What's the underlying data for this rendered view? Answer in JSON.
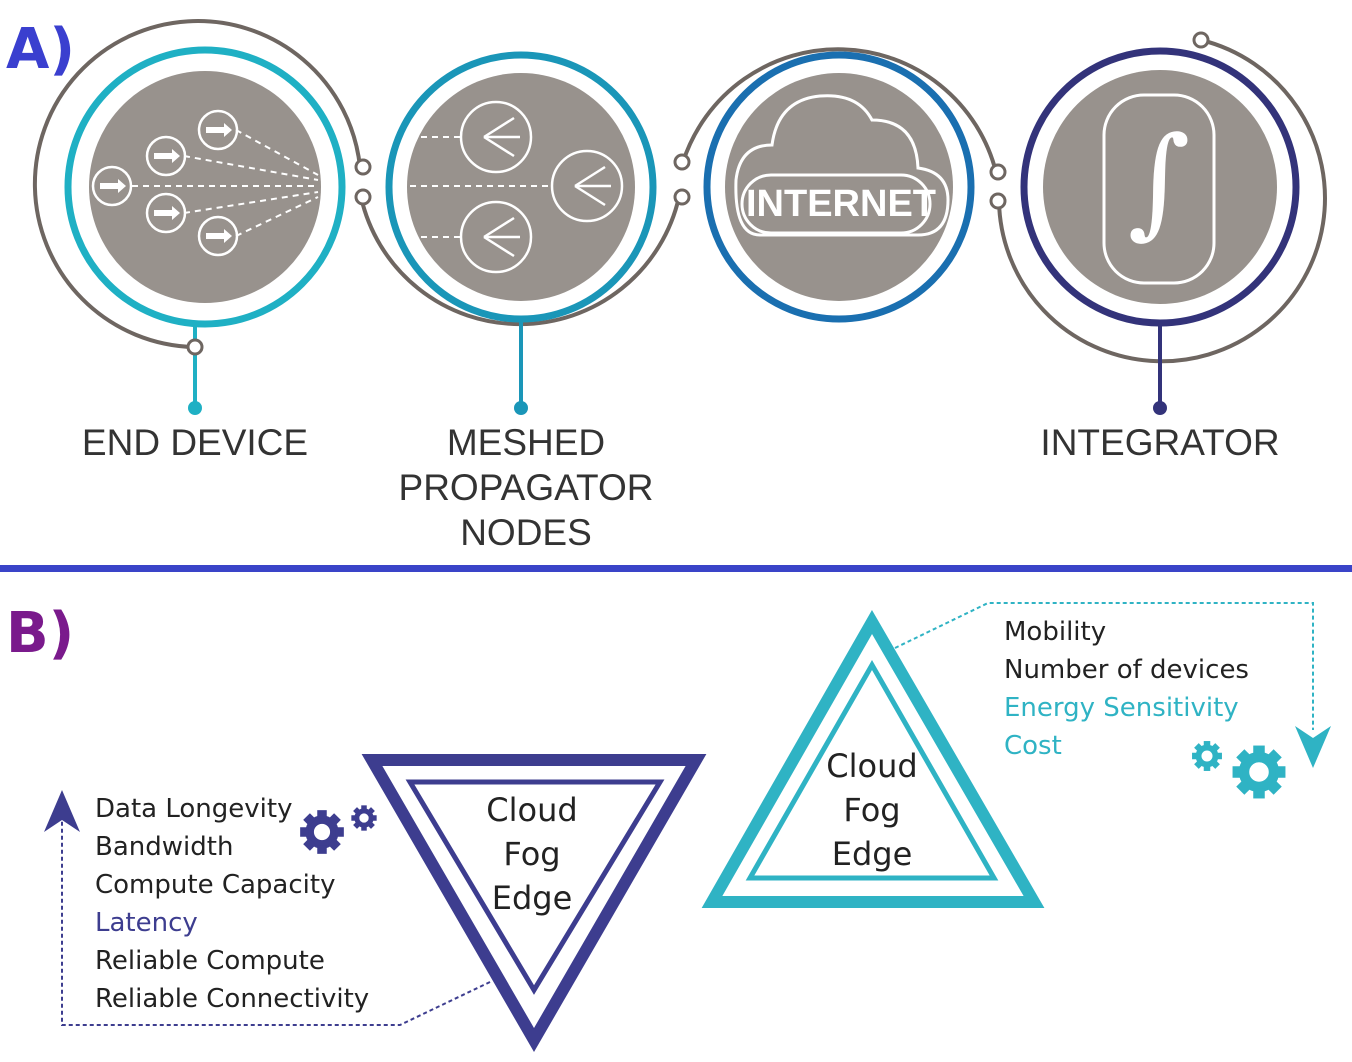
{
  "panels": {
    "a_label": "A)",
    "b_label": "B)",
    "a_color": "#3a3fcf",
    "b_color": "#7a1a8c"
  },
  "nodes": [
    {
      "name": "end-device",
      "label": "END DEVICE",
      "color": "#1fb0c4"
    },
    {
      "name": "meshed-propagator-nodes",
      "label": "MESHED\nPROPAGATOR\nNODES",
      "color": "#1a96b8"
    },
    {
      "name": "internet",
      "label": "",
      "icon_text": "INTERNET",
      "color": "#1a6fb0"
    },
    {
      "name": "integrator",
      "label": "INTEGRATOR",
      "color": "#33337a",
      "icon_text": "∫"
    }
  ],
  "divider_color": "#3a44c8",
  "inverted_triangle": {
    "tiers": "Cloud\nFog\nEdge",
    "color": "#3d3d8f",
    "factors": [
      {
        "text": "Data Longevity",
        "highlight": false
      },
      {
        "text": "Bandwidth",
        "highlight": false
      },
      {
        "text": "Compute Capacity",
        "highlight": false
      },
      {
        "text": "Latency",
        "highlight": true
      },
      {
        "text": "Reliable Compute",
        "highlight": false
      },
      {
        "text": "Reliable Connectivity",
        "highlight": false
      }
    ],
    "highlight_color": "#3d3d8f"
  },
  "upright_triangle": {
    "tiers": "Cloud\nFog\nEdge",
    "color": "#2fb3c4",
    "factors": [
      {
        "text": "Mobility",
        "highlight": false
      },
      {
        "text": "Number of devices",
        "highlight": false
      },
      {
        "text": "Energy Sensitivity",
        "highlight": true
      },
      {
        "text": "Cost",
        "highlight": true
      }
    ],
    "highlight_color": "#2fb3c4"
  },
  "icons": {
    "end_device": "end-device-arrows-icon",
    "propagator": "mesh-node-icon",
    "internet": "cloud-icon",
    "integrator": "integral-icon",
    "gears": "gear-icon"
  }
}
